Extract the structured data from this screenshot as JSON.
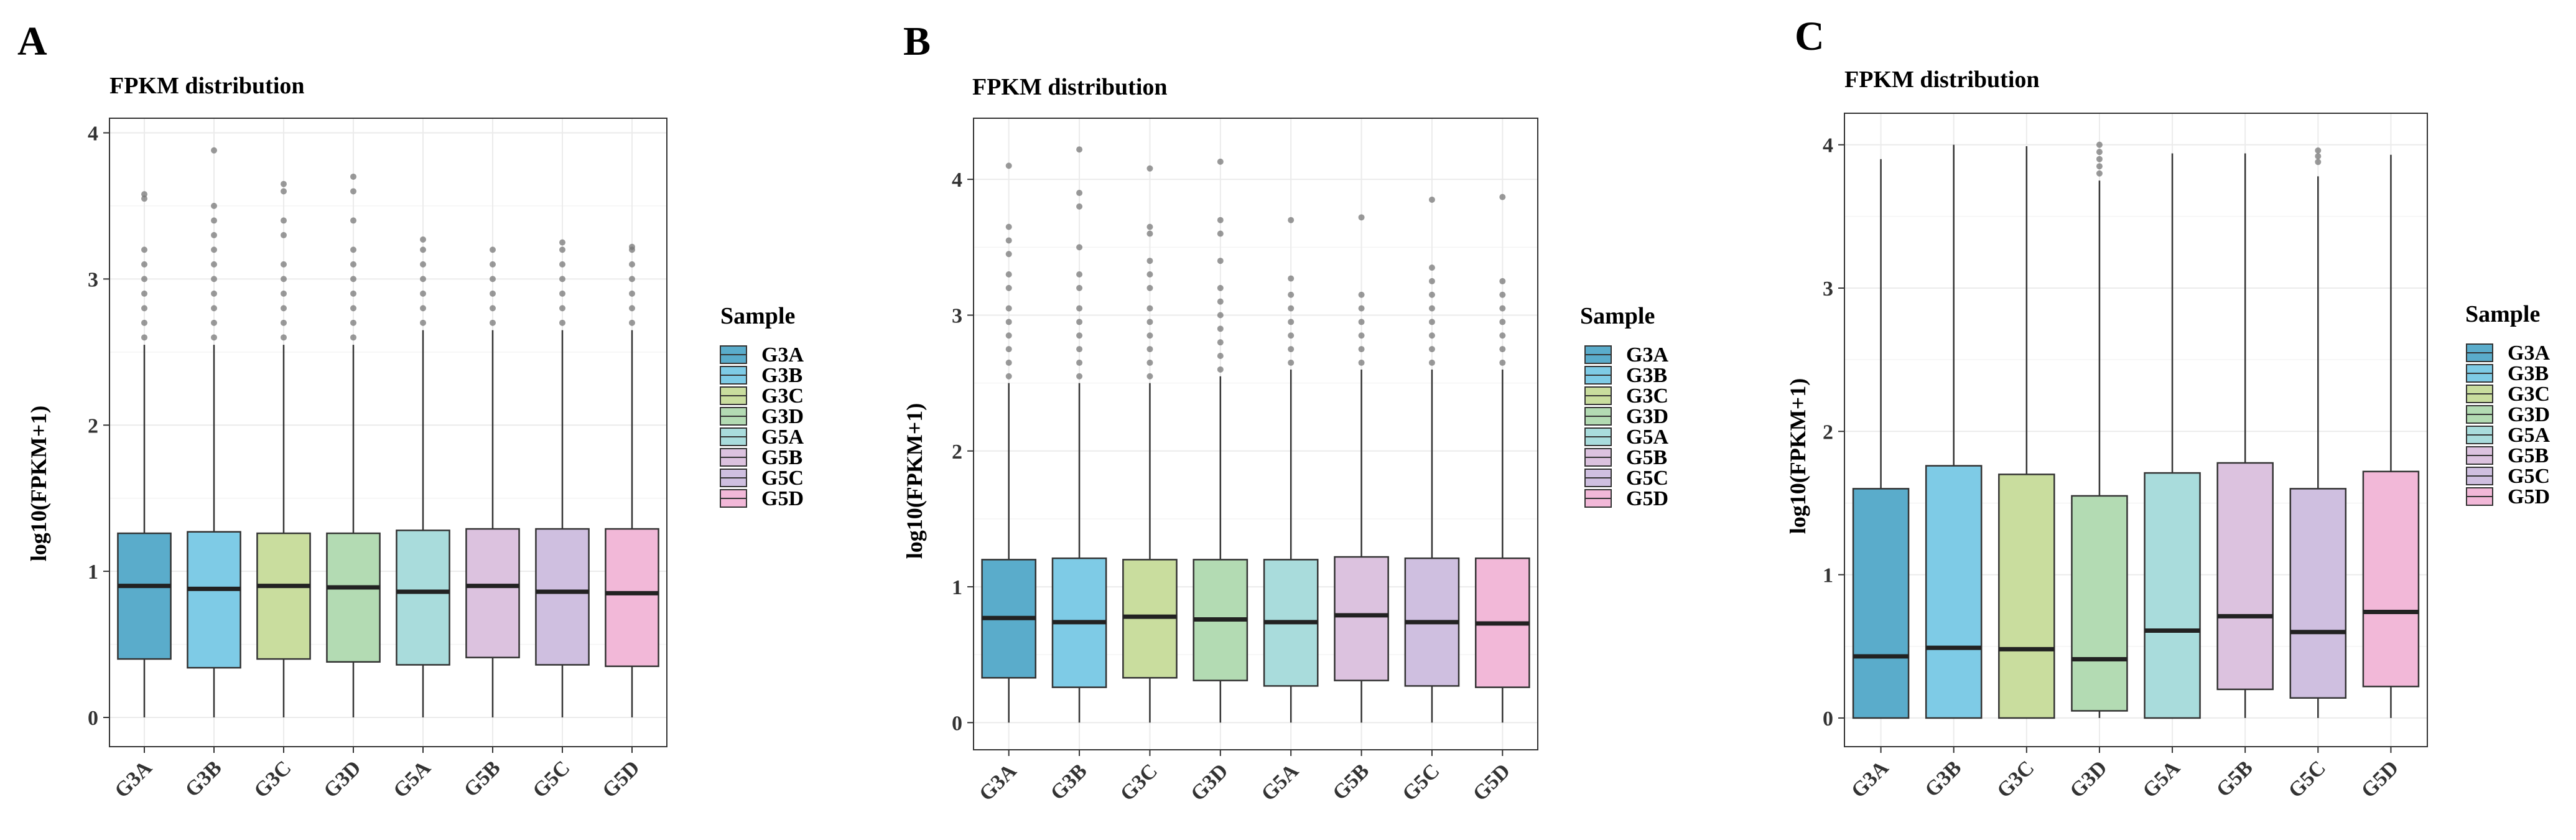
{
  "colors": {
    "G3A": "#5aaccb",
    "G3B": "#7ecbe6",
    "G3C": "#c9dd9e",
    "G3D": "#b3dbb3",
    "G5A": "#a9dcdc",
    "G5B": "#dcc2df",
    "G5C": "#cfbfe0",
    "G5D": "#f2b8d8"
  },
  "chart_data": [
    {
      "panel": "A",
      "type": "box",
      "title": "FPKM distribution",
      "xlabel": "",
      "ylabel": "log10(FPKM+1)",
      "ylim": [
        -0.2,
        4.1
      ],
      "yticks": [
        0,
        1,
        2,
        3,
        4
      ],
      "legend_title": "Sample",
      "categories": [
        "G3A",
        "G3B",
        "G3C",
        "G3D",
        "G5A",
        "G5B",
        "G5C",
        "G5D"
      ],
      "boxes": [
        {
          "name": "G3A",
          "min": 0,
          "q1": 0.4,
          "median": 0.9,
          "q3": 1.26,
          "whisker_high": 2.55,
          "outliers": [
            2.6,
            2.7,
            2.8,
            2.9,
            3.0,
            3.1,
            3.2,
            3.55,
            3.58
          ]
        },
        {
          "name": "G3B",
          "min": 0,
          "q1": 0.34,
          "median": 0.88,
          "q3": 1.27,
          "whisker_high": 2.55,
          "outliers": [
            2.6,
            2.7,
            2.8,
            2.9,
            3.0,
            3.1,
            3.2,
            3.3,
            3.4,
            3.5,
            3.88
          ]
        },
        {
          "name": "G3C",
          "min": 0,
          "q1": 0.4,
          "median": 0.9,
          "q3": 1.26,
          "whisker_high": 2.55,
          "outliers": [
            2.6,
            2.7,
            2.8,
            2.9,
            3.0,
            3.1,
            3.3,
            3.4,
            3.6,
            3.65
          ]
        },
        {
          "name": "G3D",
          "min": 0,
          "q1": 0.38,
          "median": 0.89,
          "q3": 1.26,
          "whisker_high": 2.55,
          "outliers": [
            2.6,
            2.7,
            2.8,
            2.9,
            3.0,
            3.1,
            3.2,
            3.4,
            3.6,
            3.7
          ]
        },
        {
          "name": "G5A",
          "min": 0,
          "q1": 0.36,
          "median": 0.86,
          "q3": 1.28,
          "whisker_high": 2.65,
          "outliers": [
            2.7,
            2.8,
            2.9,
            3.0,
            3.1,
            3.2,
            3.27
          ]
        },
        {
          "name": "G5B",
          "min": 0,
          "q1": 0.41,
          "median": 0.9,
          "q3": 1.29,
          "whisker_high": 2.65,
          "outliers": [
            2.7,
            2.8,
            2.9,
            3.0,
            3.1,
            3.2
          ]
        },
        {
          "name": "G5C",
          "min": 0,
          "q1": 0.36,
          "median": 0.86,
          "q3": 1.29,
          "whisker_high": 2.65,
          "outliers": [
            2.7,
            2.8,
            2.9,
            3.0,
            3.1,
            3.2,
            3.25
          ]
        },
        {
          "name": "G5D",
          "min": 0,
          "q1": 0.35,
          "median": 0.85,
          "q3": 1.29,
          "whisker_high": 2.65,
          "outliers": [
            2.7,
            2.8,
            2.9,
            3.0,
            3.1,
            3.2,
            3.22
          ]
        }
      ]
    },
    {
      "panel": "B",
      "type": "box",
      "title": "FPKM distribution",
      "xlabel": "",
      "ylabel": "log10(FPKM+1)",
      "ylim": [
        -0.2,
        4.45
      ],
      "yticks": [
        0,
        1,
        2,
        3,
        4
      ],
      "legend_title": "Sample",
      "categories": [
        "G3A",
        "G3B",
        "G3C",
        "G3D",
        "G5A",
        "G5B",
        "G5C",
        "G5D"
      ],
      "boxes": [
        {
          "name": "G3A",
          "min": 0,
          "q1": 0.33,
          "median": 0.77,
          "q3": 1.2,
          "whisker_high": 2.5,
          "outliers": [
            2.55,
            2.65,
            2.75,
            2.85,
            2.95,
            3.05,
            3.2,
            3.3,
            3.45,
            3.55,
            3.65,
            4.1
          ]
        },
        {
          "name": "G3B",
          "min": 0,
          "q1": 0.26,
          "median": 0.74,
          "q3": 1.21,
          "whisker_high": 2.5,
          "outliers": [
            2.55,
            2.65,
            2.75,
            2.85,
            2.95,
            3.05,
            3.2,
            3.3,
            3.5,
            3.8,
            3.9,
            4.22
          ]
        },
        {
          "name": "G3C",
          "min": 0,
          "q1": 0.33,
          "median": 0.78,
          "q3": 1.2,
          "whisker_high": 2.5,
          "outliers": [
            2.55,
            2.65,
            2.75,
            2.85,
            2.95,
            3.05,
            3.2,
            3.3,
            3.4,
            3.6,
            3.65,
            4.08
          ]
        },
        {
          "name": "G3D",
          "min": 0,
          "q1": 0.31,
          "median": 0.76,
          "q3": 1.2,
          "whisker_high": 2.55,
          "outliers": [
            2.6,
            2.7,
            2.8,
            2.9,
            3.0,
            3.1,
            3.2,
            3.4,
            3.6,
            3.7,
            4.13
          ]
        },
        {
          "name": "G5A",
          "min": 0,
          "q1": 0.27,
          "median": 0.74,
          "q3": 1.2,
          "whisker_high": 2.6,
          "outliers": [
            2.65,
            2.75,
            2.85,
            2.95,
            3.05,
            3.15,
            3.27,
            3.7
          ]
        },
        {
          "name": "G5B",
          "min": 0,
          "q1": 0.31,
          "median": 0.79,
          "q3": 1.22,
          "whisker_high": 2.6,
          "outliers": [
            2.65,
            2.75,
            2.85,
            2.95,
            3.05,
            3.15,
            3.72
          ]
        },
        {
          "name": "G5C",
          "min": 0,
          "q1": 0.27,
          "median": 0.74,
          "q3": 1.21,
          "whisker_high": 2.6,
          "outliers": [
            2.65,
            2.75,
            2.85,
            2.95,
            3.05,
            3.15,
            3.25,
            3.35,
            3.85
          ]
        },
        {
          "name": "G5D",
          "min": 0,
          "q1": 0.26,
          "median": 0.73,
          "q3": 1.21,
          "whisker_high": 2.6,
          "outliers": [
            2.65,
            2.75,
            2.85,
            2.95,
            3.05,
            3.15,
            3.25,
            3.87
          ]
        }
      ]
    },
    {
      "panel": "C",
      "type": "box",
      "title": "FPKM distribution",
      "xlabel": "",
      "ylabel": "log10(FPKM+1)",
      "ylim": [
        -0.2,
        4.22
      ],
      "yticks": [
        0,
        1,
        2,
        3,
        4
      ],
      "legend_title": "Sample",
      "categories": [
        "G3A",
        "G3B",
        "G3C",
        "G3D",
        "G5A",
        "G5B",
        "G5C",
        "G5D"
      ],
      "boxes": [
        {
          "name": "G3A",
          "min": 0,
          "q1": 0,
          "median": 0.43,
          "q3": 1.6,
          "whisker_high": 3.9,
          "outliers": []
        },
        {
          "name": "G3B",
          "min": 0,
          "q1": 0,
          "median": 0.49,
          "q3": 1.76,
          "whisker_high": 4.0,
          "outliers": []
        },
        {
          "name": "G3C",
          "min": 0,
          "q1": 0,
          "median": 0.48,
          "q3": 1.7,
          "whisker_high": 3.99,
          "outliers": []
        },
        {
          "name": "G3D",
          "min": 0,
          "q1": 0.05,
          "median": 0.41,
          "q3": 1.55,
          "whisker_high": 3.75,
          "outliers": [
            3.8,
            3.85,
            3.9,
            3.95,
            4.0
          ]
        },
        {
          "name": "G5A",
          "min": 0,
          "q1": 0,
          "median": 0.61,
          "q3": 1.71,
          "whisker_high": 3.94,
          "outliers": []
        },
        {
          "name": "G5B",
          "min": 0,
          "q1": 0.2,
          "median": 0.71,
          "q3": 1.78,
          "whisker_high": 3.94,
          "outliers": []
        },
        {
          "name": "G5C",
          "min": 0,
          "q1": 0.14,
          "median": 0.6,
          "q3": 1.6,
          "whisker_high": 3.78,
          "outliers": [
            3.88,
            3.92,
            3.96
          ]
        },
        {
          "name": "G5D",
          "min": 0,
          "q1": 0.22,
          "median": 0.74,
          "q3": 1.72,
          "whisker_high": 3.93,
          "outliers": []
        }
      ]
    }
  ]
}
